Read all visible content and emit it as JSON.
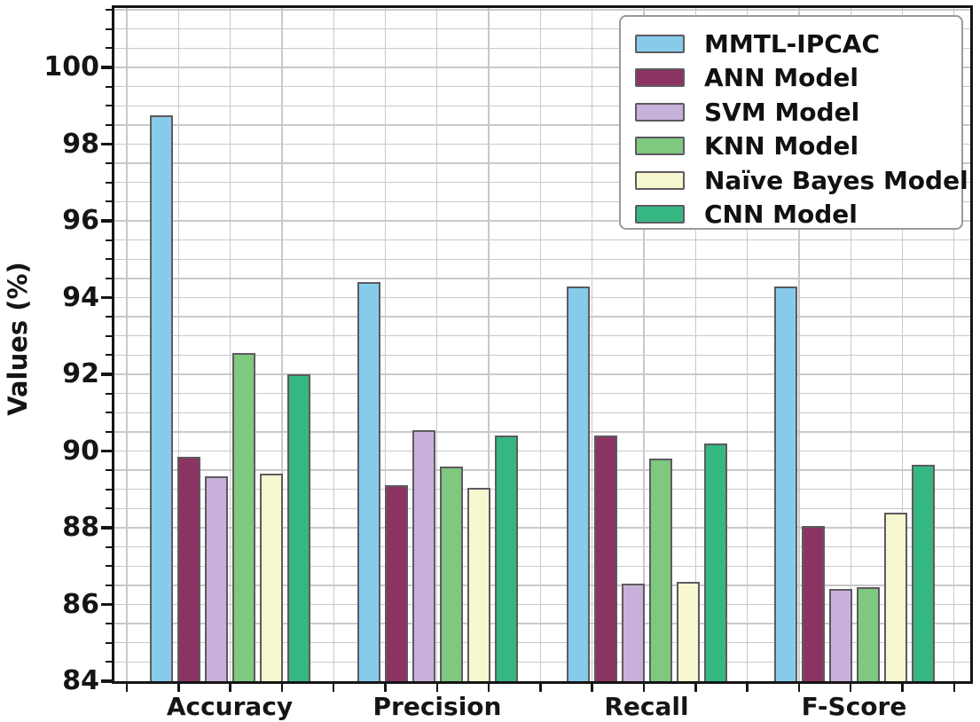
{
  "chart_data": {
    "type": "bar",
    "title": "",
    "xlabel": "",
    "ylabel": "Values (%)",
    "categories": [
      "Accuracy",
      "Precision",
      "Recall",
      "F-Score"
    ],
    "series": [
      {
        "name": "MMTL-IPCAC",
        "color": "#87cbea",
        "values": [
          98.75,
          94.4,
          94.3,
          94.3
        ]
      },
      {
        "name": "ANN Model",
        "color": "#8b3463",
        "values": [
          89.85,
          89.1,
          90.4,
          88.05
        ]
      },
      {
        "name": "SVM Model",
        "color": "#c7b0d9",
        "values": [
          89.35,
          90.55,
          86.55,
          86.4
        ]
      },
      {
        "name": "KNN Model",
        "color": "#7ec880",
        "values": [
          92.55,
          89.6,
          89.8,
          86.45
        ]
      },
      {
        "name": "Naïve Bayes Model",
        "color": "#f7f7d0",
        "values": [
          89.4,
          89.05,
          86.6,
          88.4
        ]
      },
      {
        "name": "CNN Model",
        "color": "#35b781",
        "values": [
          92.0,
          90.4,
          90.2,
          89.65
        ]
      }
    ],
    "ylim": [
      84,
      101.55
    ],
    "yticks": [
      84,
      86,
      88,
      90,
      92,
      94,
      96,
      98,
      100
    ],
    "minor_ytick_step": 0.5,
    "grid": true,
    "grid_color": "#c9c9c9",
    "bar_edge_color": "#5e5a60",
    "axis_color": "#151515",
    "legend_position": "upper right"
  }
}
